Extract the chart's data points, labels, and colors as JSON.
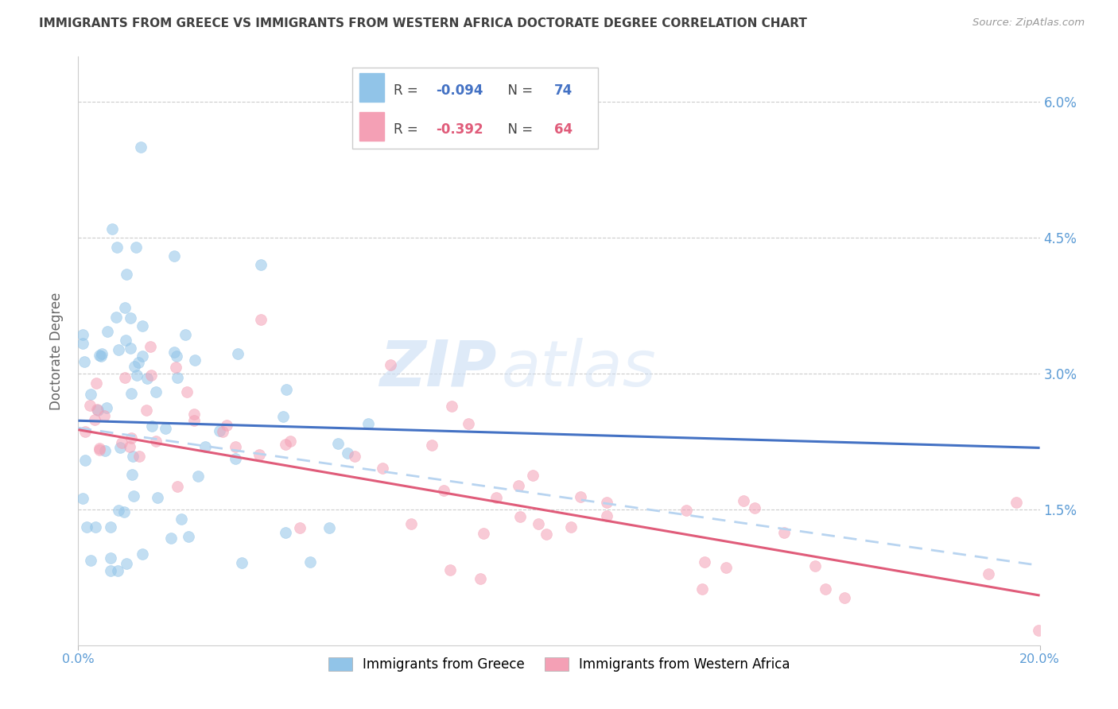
{
  "title": "IMMIGRANTS FROM GREECE VS IMMIGRANTS FROM WESTERN AFRICA DOCTORATE DEGREE CORRELATION CHART",
  "source": "Source: ZipAtlas.com",
  "ylabel": "Doctorate Degree",
  "xmin": 0.0,
  "xmax": 0.2,
  "ymin": 0.0,
  "ymax": 0.065,
  "yticks": [
    0.0,
    0.015,
    0.03,
    0.045,
    0.06
  ],
  "ytick_labels": [
    "",
    "1.5%",
    "3.0%",
    "4.5%",
    "6.0%"
  ],
  "xtick_positions": [
    0.0,
    0.2
  ],
  "xtick_labels": [
    "0.0%",
    "20.0%"
  ],
  "greece_color": "#91c4e8",
  "western_africa_color": "#f4a0b5",
  "greece_R": -0.094,
  "greece_N": 74,
  "western_africa_R": -0.392,
  "western_africa_N": 64,
  "greece_line_color": "#4472c4",
  "western_africa_line_color": "#e05c7a",
  "dashed_line_color": "#b8d4f0",
  "background_color": "#ffffff",
  "grid_color": "#cccccc",
  "axis_label_color": "#5b9bd5",
  "title_color": "#404040",
  "watermark_zip": "ZIP",
  "watermark_atlas": "atlas",
  "marker_size": 100,
  "marker_alpha": 0.55,
  "greece_line_start_y": 0.0248,
  "greece_line_end_y": 0.0218,
  "wa_line_start_y": 0.0238,
  "wa_line_end_y": 0.0055,
  "dash_line_start_y": 0.024,
  "dash_line_end_y": 0.0088
}
